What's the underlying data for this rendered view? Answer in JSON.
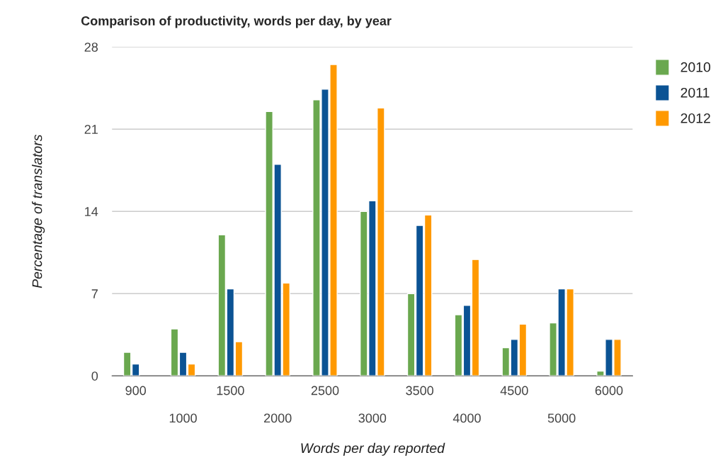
{
  "chart_data": {
    "type": "bar",
    "title": "Comparison of productivity, words per day, by year",
    "xlabel": "Words per day reported",
    "ylabel": "Percentage of translators",
    "categories": [
      "900",
      "1000",
      "1500",
      "2000",
      "2500",
      "3000",
      "3500",
      "4000",
      "4500",
      "5000",
      "6000"
    ],
    "series": [
      {
        "name": "2010",
        "color": "#6aa84f",
        "values": [
          2,
          4,
          12,
          22.5,
          23.5,
          14,
          7,
          5.2,
          2.4,
          4.5,
          0.4
        ]
      },
      {
        "name": "2011",
        "color": "#0b5394",
        "values": [
          1,
          2,
          7.4,
          18,
          24.4,
          14.9,
          12.8,
          6,
          3.1,
          7.4,
          3.1
        ]
      },
      {
        "name": "2012",
        "color": "#ff9900",
        "values": [
          null,
          1,
          2.9,
          7.9,
          26.5,
          22.8,
          13.7,
          9.9,
          4.4,
          7.4,
          3.1
        ]
      }
    ],
    "ylim": [
      0,
      28
    ],
    "yticks": [
      0,
      7,
      14,
      21,
      28
    ],
    "grid": "y",
    "legend": "right"
  }
}
